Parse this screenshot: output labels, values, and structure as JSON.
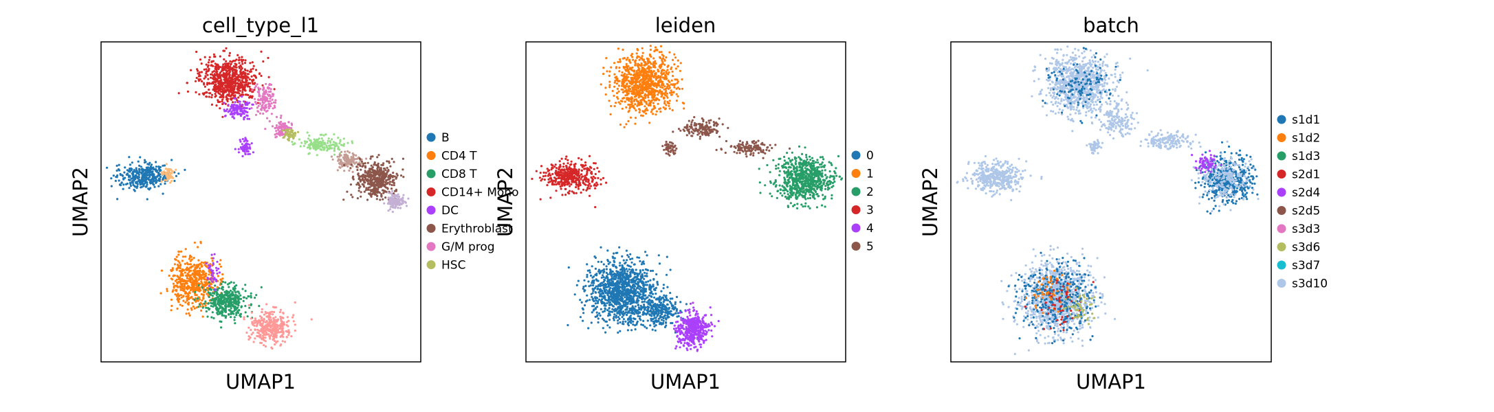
{
  "chart_data": [
    {
      "type": "scatter",
      "title": "cell_type_l1",
      "xlabel": "UMAP1",
      "ylabel": "UMAP2",
      "grid": false,
      "ticks": false,
      "legend_position": "right",
      "legend": [
        {
          "label": "B",
          "color": "#1f77b4"
        },
        {
          "label": "CD4 T",
          "color": "#ff7f0e"
        },
        {
          "label": "CD8 T",
          "color": "#279e68"
        },
        {
          "label": "CD14+ Mono",
          "color": "#d62728"
        },
        {
          "label": "DC",
          "color": "#aa40fc"
        },
        {
          "label": "Erythroblast",
          "color": "#8c564b"
        },
        {
          "label": "G/M prog",
          "color": "#e377c2"
        },
        {
          "label": "HSC",
          "color": "#b5bd61"
        }
      ],
      "clusters": [
        {
          "color": "#d62728",
          "cx": 0.4,
          "cy": 0.12,
          "rx": 0.09,
          "ry": 0.07,
          "n": 700
        },
        {
          "color": "#e377c2",
          "cx": 0.51,
          "cy": 0.18,
          "rx": 0.03,
          "ry": 0.05,
          "n": 120
        },
        {
          "color": "#aa40fc",
          "cx": 0.43,
          "cy": 0.21,
          "rx": 0.04,
          "ry": 0.03,
          "n": 120
        },
        {
          "color": "#aa40fc",
          "cx": 0.45,
          "cy": 0.33,
          "rx": 0.02,
          "ry": 0.025,
          "n": 60
        },
        {
          "color": "#e377c2",
          "cx": 0.57,
          "cy": 0.27,
          "rx": 0.03,
          "ry": 0.025,
          "n": 80
        },
        {
          "color": "#b5bd61",
          "cx": 0.59,
          "cy": 0.29,
          "rx": 0.02,
          "ry": 0.015,
          "n": 50
        },
        {
          "color": "#98df8a",
          "cx": 0.69,
          "cy": 0.32,
          "rx": 0.07,
          "ry": 0.025,
          "n": 160
        },
        {
          "color": "#c49c94",
          "cx": 0.77,
          "cy": 0.37,
          "rx": 0.04,
          "ry": 0.025,
          "n": 120
        },
        {
          "color": "#8c564b",
          "cx": 0.86,
          "cy": 0.43,
          "rx": 0.06,
          "ry": 0.06,
          "n": 420
        },
        {
          "color": "#c5b0d5",
          "cx": 0.92,
          "cy": 0.5,
          "rx": 0.03,
          "ry": 0.025,
          "n": 120
        },
        {
          "color": "#1f77b4",
          "cx": 0.13,
          "cy": 0.42,
          "rx": 0.08,
          "ry": 0.04,
          "n": 350
        },
        {
          "color": "#ffbb78",
          "cx": 0.21,
          "cy": 0.41,
          "rx": 0.02,
          "ry": 0.025,
          "n": 50
        },
        {
          "color": "#ff7f0e",
          "cx": 0.29,
          "cy": 0.75,
          "rx": 0.07,
          "ry": 0.08,
          "n": 500
        },
        {
          "color": "#279e68",
          "cx": 0.39,
          "cy": 0.81,
          "rx": 0.07,
          "ry": 0.05,
          "n": 380
        },
        {
          "color": "#ff9896",
          "cx": 0.53,
          "cy": 0.89,
          "rx": 0.06,
          "ry": 0.05,
          "n": 350
        },
        {
          "color": "#aa40fc",
          "cx": 0.35,
          "cy": 0.72,
          "rx": 0.02,
          "ry": 0.05,
          "n": 40
        }
      ]
    },
    {
      "type": "scatter",
      "title": "leiden",
      "xlabel": "UMAP1",
      "ylabel": "UMAP2",
      "grid": false,
      "ticks": false,
      "legend_position": "right",
      "legend": [
        {
          "label": "0",
          "color": "#1f77b4"
        },
        {
          "label": "1",
          "color": "#ff7f0e"
        },
        {
          "label": "2",
          "color": "#279e68"
        },
        {
          "label": "3",
          "color": "#d62728"
        },
        {
          "label": "4",
          "color": "#aa40fc"
        },
        {
          "label": "5",
          "color": "#8c564b"
        }
      ],
      "clusters": [
        {
          "color": "#ff7f0e",
          "cx": 0.37,
          "cy": 0.13,
          "rx": 0.1,
          "ry": 0.09,
          "n": 900
        },
        {
          "color": "#8c564b",
          "cx": 0.55,
          "cy": 0.27,
          "rx": 0.06,
          "ry": 0.025,
          "n": 150
        },
        {
          "color": "#8c564b",
          "cx": 0.45,
          "cy": 0.33,
          "rx": 0.02,
          "ry": 0.02,
          "n": 50
        },
        {
          "color": "#8c564b",
          "cx": 0.7,
          "cy": 0.33,
          "rx": 0.07,
          "ry": 0.02,
          "n": 120
        },
        {
          "color": "#279e68",
          "cx": 0.87,
          "cy": 0.43,
          "rx": 0.09,
          "ry": 0.07,
          "n": 700
        },
        {
          "color": "#d62728",
          "cx": 0.14,
          "cy": 0.42,
          "rx": 0.08,
          "ry": 0.045,
          "n": 400
        },
        {
          "color": "#1f77b4",
          "cx": 0.3,
          "cy": 0.78,
          "rx": 0.1,
          "ry": 0.1,
          "n": 1100
        },
        {
          "color": "#1f77b4",
          "cx": 0.42,
          "cy": 0.84,
          "rx": 0.06,
          "ry": 0.05,
          "n": 250
        },
        {
          "color": "#aa40fc",
          "cx": 0.52,
          "cy": 0.9,
          "rx": 0.05,
          "ry": 0.055,
          "n": 400
        }
      ]
    },
    {
      "type": "scatter",
      "title": "batch",
      "xlabel": "UMAP1",
      "ylabel": "UMAP2",
      "grid": false,
      "ticks": false,
      "legend_position": "right",
      "legend": [
        {
          "label": "s1d1",
          "color": "#1f77b4"
        },
        {
          "label": "s1d2",
          "color": "#ff7f0e"
        },
        {
          "label": "s1d3",
          "color": "#279e68"
        },
        {
          "label": "s2d1",
          "color": "#d62728"
        },
        {
          "label": "s2d4",
          "color": "#aa40fc"
        },
        {
          "label": "s2d5",
          "color": "#8c564b"
        },
        {
          "label": "s3d3",
          "color": "#e377c2"
        },
        {
          "label": "s3d6",
          "color": "#b5bd61"
        },
        {
          "label": "s3d7",
          "color": "#17becf"
        },
        {
          "label": "s3d10",
          "color": "#aec7e8"
        }
      ],
      "clusters": [
        {
          "color": "#aec7e8",
          "cx": 0.4,
          "cy": 0.13,
          "rx": 0.1,
          "ry": 0.09,
          "n": 900
        },
        {
          "color": "#1f77b4",
          "cx": 0.4,
          "cy": 0.13,
          "rx": 0.1,
          "ry": 0.09,
          "n": 120
        },
        {
          "color": "#aec7e8",
          "cx": 0.52,
          "cy": 0.24,
          "rx": 0.05,
          "ry": 0.05,
          "n": 150
        },
        {
          "color": "#aec7e8",
          "cx": 0.45,
          "cy": 0.33,
          "rx": 0.02,
          "ry": 0.02,
          "n": 50
        },
        {
          "color": "#aec7e8",
          "cx": 0.68,
          "cy": 0.31,
          "rx": 0.08,
          "ry": 0.025,
          "n": 150
        },
        {
          "color": "#1f77b4",
          "cx": 0.86,
          "cy": 0.43,
          "rx": 0.08,
          "ry": 0.07,
          "n": 450
        },
        {
          "color": "#aa40fc",
          "cx": 0.8,
          "cy": 0.38,
          "rx": 0.04,
          "ry": 0.03,
          "n": 80
        },
        {
          "color": "#aec7e8",
          "cx": 0.86,
          "cy": 0.43,
          "rx": 0.08,
          "ry": 0.07,
          "n": 200
        },
        {
          "color": "#aec7e8",
          "cx": 0.14,
          "cy": 0.42,
          "rx": 0.08,
          "ry": 0.045,
          "n": 400
        },
        {
          "color": "#aec7e8",
          "cx": 0.33,
          "cy": 0.8,
          "rx": 0.11,
          "ry": 0.11,
          "n": 1100
        },
        {
          "color": "#1f77b4",
          "cx": 0.33,
          "cy": 0.8,
          "rx": 0.11,
          "ry": 0.11,
          "n": 350
        },
        {
          "color": "#ff7f0e",
          "cx": 0.31,
          "cy": 0.78,
          "rx": 0.06,
          "ry": 0.06,
          "n": 50
        },
        {
          "color": "#d62728",
          "cx": 0.35,
          "cy": 0.82,
          "rx": 0.08,
          "ry": 0.08,
          "n": 50
        },
        {
          "color": "#b5bd61",
          "cx": 0.4,
          "cy": 0.83,
          "rx": 0.05,
          "ry": 0.05,
          "n": 50
        }
      ]
    }
  ]
}
